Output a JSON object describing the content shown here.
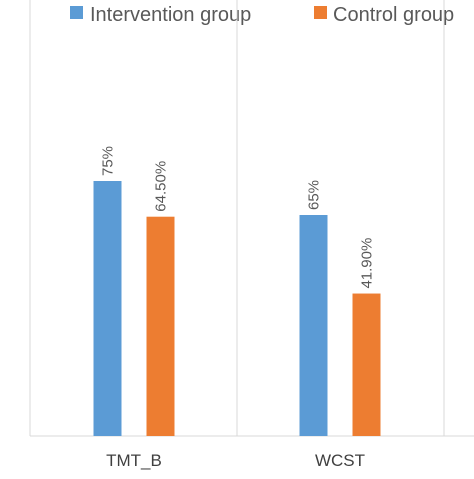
{
  "chart_data": {
    "type": "bar",
    "categories": [
      "TMT_B",
      "WCST"
    ],
    "series": [
      {
        "name": "Intervention group",
        "color": "#5B9BD5",
        "values": [
          75,
          65
        ],
        "labels": [
          "75%",
          "65%"
        ]
      },
      {
        "name": "Control group",
        "color": "#ED7D31",
        "values": [
          64.5,
          41.9
        ],
        "labels": [
          "64.50%",
          "41.90%"
        ]
      }
    ],
    "title": "",
    "xlabel": "",
    "ylabel": "",
    "ylim": [
      0,
      100
    ],
    "grid": "vertical-category-separators",
    "legend_position": "top"
  }
}
